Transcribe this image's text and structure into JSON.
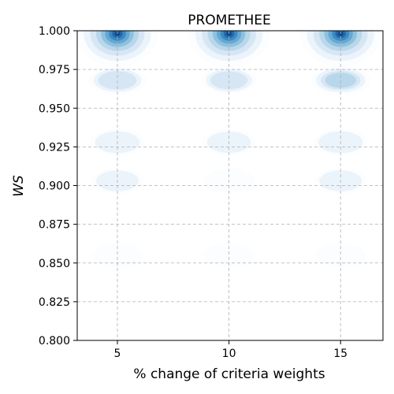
{
  "chart_data": {
    "type": "kde-contour",
    "title": "PROMETHEE",
    "xlabel": "% change of criteria weights",
    "ylabel": "WS",
    "categories": [
      "5",
      "10",
      "15"
    ],
    "x_values": [
      5,
      10,
      15
    ],
    "xlim": [
      3.2,
      16.9
    ],
    "ylim": [
      0.8,
      1.0
    ],
    "yticks": [
      "0.800",
      "0.825",
      "0.850",
      "0.875",
      "0.900",
      "0.925",
      "0.950",
      "0.975",
      "1.000"
    ],
    "grid": true,
    "colormap": "Blues",
    "palette": [
      "#f7fbff",
      "#deebf7",
      "#c6dbef",
      "#9ecae1",
      "#6baed6",
      "#4292c6",
      "#2171b5",
      "#08519c",
      "#08306b"
    ],
    "density_modes": [
      {
        "x": 5,
        "ws": 0.998,
        "weight": 1.0
      },
      {
        "x": 5,
        "ws": 0.968,
        "weight": 0.35
      },
      {
        "x": 5,
        "ws": 0.928,
        "weight": 0.25
      },
      {
        "x": 5,
        "ws": 0.903,
        "weight": 0.18
      },
      {
        "x": 5,
        "ws": 0.855,
        "weight": 0.15
      },
      {
        "x": 10,
        "ws": 0.998,
        "weight": 1.0
      },
      {
        "x": 10,
        "ws": 0.968,
        "weight": 0.3
      },
      {
        "x": 10,
        "ws": 0.928,
        "weight": 0.22
      },
      {
        "x": 10,
        "ws": 0.903,
        "weight": 0.16
      },
      {
        "x": 10,
        "ws": 0.855,
        "weight": 0.15
      },
      {
        "x": 15,
        "ws": 0.998,
        "weight": 1.0
      },
      {
        "x": 15,
        "ws": 0.968,
        "weight": 0.4
      },
      {
        "x": 15,
        "ws": 0.928,
        "weight": 0.25
      },
      {
        "x": 15,
        "ws": 0.903,
        "weight": 0.18
      },
      {
        "x": 15,
        "ws": 0.855,
        "weight": 0.15
      }
    ]
  }
}
